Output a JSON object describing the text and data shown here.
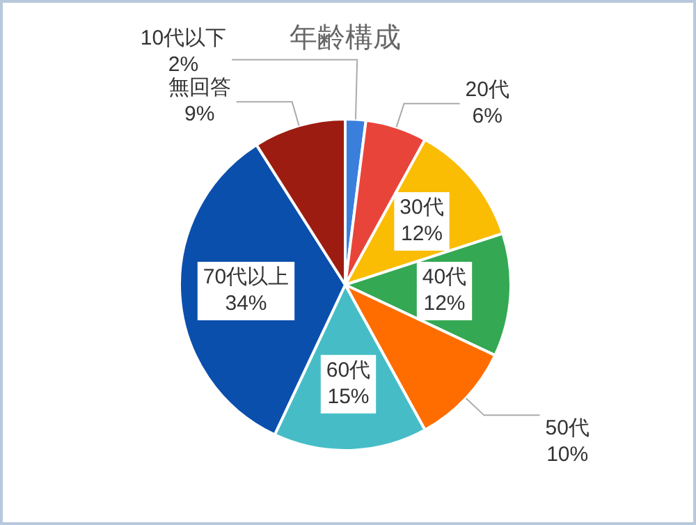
{
  "chart_data": {
    "type": "pie",
    "title": "年齢構成",
    "categories": [
      "10代以下",
      "20代",
      "30代",
      "40代",
      "50代",
      "60代",
      "70代以上",
      "無回答"
    ],
    "values": [
      2,
      6,
      12,
      12,
      10,
      15,
      34,
      9
    ],
    "colors": [
      "#3a7fdc",
      "#e8443a",
      "#fbbc04",
      "#34a853",
      "#ff6d01",
      "#46bdc6",
      "#0b4fad",
      "#9c1c12"
    ],
    "value_labels": [
      "2%",
      "6%",
      "12%",
      "12%",
      "10%",
      "15%",
      "34%",
      "9%"
    ]
  }
}
